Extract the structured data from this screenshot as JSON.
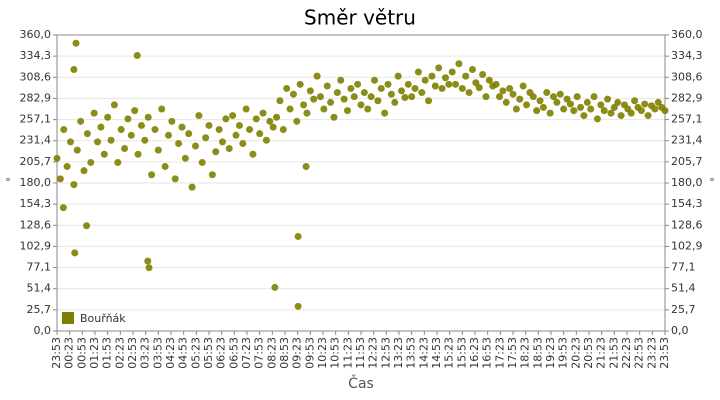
{
  "chart_data": {
    "type": "scatter",
    "title": "Směr větru",
    "x_label": "Čas",
    "y_label": "°",
    "grid": true,
    "legend": "lower left",
    "xlim": [
      0,
      1440
    ],
    "ylim": [
      0,
      360
    ],
    "xticks": [
      {
        "value": 0,
        "label": "23:53"
      },
      {
        "value": 30,
        "label": "00:23"
      },
      {
        "value": 60,
        "label": "00:53"
      },
      {
        "value": 90,
        "label": "01:23"
      },
      {
        "value": 120,
        "label": "01:53"
      },
      {
        "value": 150,
        "label": "02:23"
      },
      {
        "value": 180,
        "label": "02:53"
      },
      {
        "value": 210,
        "label": "03:23"
      },
      {
        "value": 240,
        "label": "03:53"
      },
      {
        "value": 270,
        "label": "04:23"
      },
      {
        "value": 300,
        "label": "04:53"
      },
      {
        "value": 330,
        "label": "05:23"
      },
      {
        "value": 360,
        "label": "05:53"
      },
      {
        "value": 390,
        "label": "06:23"
      },
      {
        "value": 420,
        "label": "06:53"
      },
      {
        "value": 450,
        "label": "07:23"
      },
      {
        "value": 480,
        "label": "07:53"
      },
      {
        "value": 510,
        "label": "08:23"
      },
      {
        "value": 540,
        "label": "08:53"
      },
      {
        "value": 570,
        "label": "09:23"
      },
      {
        "value": 600,
        "label": "09:53"
      },
      {
        "value": 630,
        "label": "10:23"
      },
      {
        "value": 660,
        "label": "10:53"
      },
      {
        "value": 690,
        "label": "11:23"
      },
      {
        "value": 720,
        "label": "11:53"
      },
      {
        "value": 750,
        "label": "12:23"
      },
      {
        "value": 780,
        "label": "12:53"
      },
      {
        "value": 810,
        "label": "13:23"
      },
      {
        "value": 840,
        "label": "13:53"
      },
      {
        "value": 870,
        "label": "14:23"
      },
      {
        "value": 900,
        "label": "14:53"
      },
      {
        "value": 930,
        "label": "15:23"
      },
      {
        "value": 960,
        "label": "15:53"
      },
      {
        "value": 990,
        "label": "16:23"
      },
      {
        "value": 1020,
        "label": "16:53"
      },
      {
        "value": 1050,
        "label": "17:23"
      },
      {
        "value": 1080,
        "label": "17:53"
      },
      {
        "value": 1110,
        "label": "18:23"
      },
      {
        "value": 1140,
        "label": "18:53"
      },
      {
        "value": 1170,
        "label": "19:23"
      },
      {
        "value": 1200,
        "label": "19:53"
      },
      {
        "value": 1230,
        "label": "20:23"
      },
      {
        "value": 1260,
        "label": "20:53"
      },
      {
        "value": 1290,
        "label": "21:23"
      },
      {
        "value": 1320,
        "label": "21:53"
      },
      {
        "value": 1350,
        "label": "22:23"
      },
      {
        "value": 1380,
        "label": "22:53"
      },
      {
        "value": 1410,
        "label": "23:23"
      },
      {
        "value": 1440,
        "label": "23:53"
      }
    ],
    "yticks": [
      {
        "value": 0,
        "label": "0,0"
      },
      {
        "value": 25.71,
        "label": "25,7"
      },
      {
        "value": 51.43,
        "label": "51,4"
      },
      {
        "value": 77.14,
        "label": "77,1"
      },
      {
        "value": 102.86,
        "label": "102,9"
      },
      {
        "value": 128.57,
        "label": "128,6"
      },
      {
        "value": 154.29,
        "label": "154,3"
      },
      {
        "value": 180,
        "label": "180,0"
      },
      {
        "value": 205.71,
        "label": "205,7"
      },
      {
        "value": 231.43,
        "label": "231,4"
      },
      {
        "value": 257.14,
        "label": "257,1"
      },
      {
        "value": 282.86,
        "label": "282,9"
      },
      {
        "value": 308.57,
        "label": "308,6"
      },
      {
        "value": 334.29,
        "label": "334,3"
      },
      {
        "value": 360,
        "label": "360,0"
      }
    ],
    "series": [
      {
        "name": "Bouřňák",
        "color": "#808000",
        "x": [
          0,
          8,
          16,
          24,
          32,
          40,
          48,
          56,
          64,
          72,
          80,
          88,
          96,
          104,
          112,
          120,
          128,
          136,
          144,
          152,
          160,
          168,
          176,
          184,
          192,
          200,
          208,
          216,
          224,
          232,
          240,
          248,
          256,
          264,
          272,
          280,
          288,
          296,
          304,
          312,
          320,
          328,
          336,
          344,
          352,
          360,
          368,
          376,
          384,
          392,
          400,
          408,
          416,
          424,
          432,
          440,
          448,
          456,
          464,
          472,
          480,
          488,
          496,
          504,
          512,
          520,
          528,
          536,
          544,
          552,
          560,
          568,
          576,
          584,
          592,
          600,
          608,
          616,
          624,
          632,
          640,
          648,
          656,
          664,
          672,
          680,
          688,
          696,
          704,
          712,
          720,
          728,
          736,
          744,
          752,
          760,
          768,
          776,
          784,
          792,
          800,
          808,
          816,
          824,
          832,
          840,
          848,
          856,
          864,
          872,
          880,
          888,
          896,
          904,
          912,
          920,
          928,
          936,
          944,
          952,
          960,
          968,
          976,
          984,
          992,
          1000,
          1008,
          1016,
          1024,
          1032,
          1040,
          1048,
          1056,
          1064,
          1072,
          1080,
          1088,
          1096,
          1104,
          1112,
          1120,
          1128,
          1136,
          1144,
          1152,
          1160,
          1168,
          1176,
          1184,
          1192,
          1200,
          1208,
          1216,
          1224,
          1232,
          1240,
          1248,
          1256,
          1264,
          1272,
          1280,
          1288,
          1296,
          1304,
          1312,
          1320,
          1328,
          1336,
          1344,
          1352,
          1360,
          1368,
          1376,
          1384,
          1392,
          1400,
          1408,
          1416,
          1424,
          1432,
          1440,
          45,
          40,
          42,
          70,
          190,
          215,
          218,
          516,
          571,
          571,
          590,
          15
        ],
        "values": [
          210,
          185,
          245,
          200,
          230,
          178,
          220,
          255,
          195,
          240,
          205,
          265,
          230,
          248,
          215,
          260,
          232,
          275,
          205,
          245,
          222,
          258,
          238,
          268,
          215,
          250,
          232,
          260,
          190,
          245,
          220,
          270,
          200,
          238,
          255,
          185,
          228,
          248,
          210,
          240,
          175,
          225,
          262,
          205,
          235,
          250,
          190,
          218,
          245,
          230,
          258,
          222,
          262,
          238,
          250,
          228,
          270,
          245,
          215,
          258,
          240,
          265,
          232,
          255,
          248,
          260,
          280,
          245,
          295,
          270,
          288,
          255,
          300,
          275,
          265,
          292,
          282,
          310,
          285,
          270,
          298,
          278,
          260,
          290,
          305,
          282,
          268,
          295,
          285,
          300,
          275,
          290,
          270,
          285,
          305,
          280,
          295,
          265,
          300,
          288,
          278,
          310,
          292,
          284,
          300,
          285,
          295,
          315,
          290,
          305,
          280,
          310,
          298,
          320,
          295,
          308,
          300,
          315,
          300,
          325,
          295,
          310,
          290,
          318,
          302,
          296,
          312,
          285,
          305,
          298,
          300,
          285,
          292,
          278,
          295,
          288,
          270,
          282,
          298,
          275,
          290,
          285,
          268,
          280,
          272,
          290,
          265,
          285,
          278,
          288,
          270,
          282,
          276,
          268,
          285,
          272,
          262,
          278,
          270,
          285,
          258,
          275,
          268,
          282,
          265,
          272,
          278,
          262,
          275,
          270,
          265,
          280,
          272,
          268,
          276,
          262,
          274,
          270,
          278,
          272,
          268,
          350,
          318,
          95,
          128,
          335,
          85,
          77,
          53,
          115,
          30,
          200,
          150
        ]
      }
    ]
  }
}
